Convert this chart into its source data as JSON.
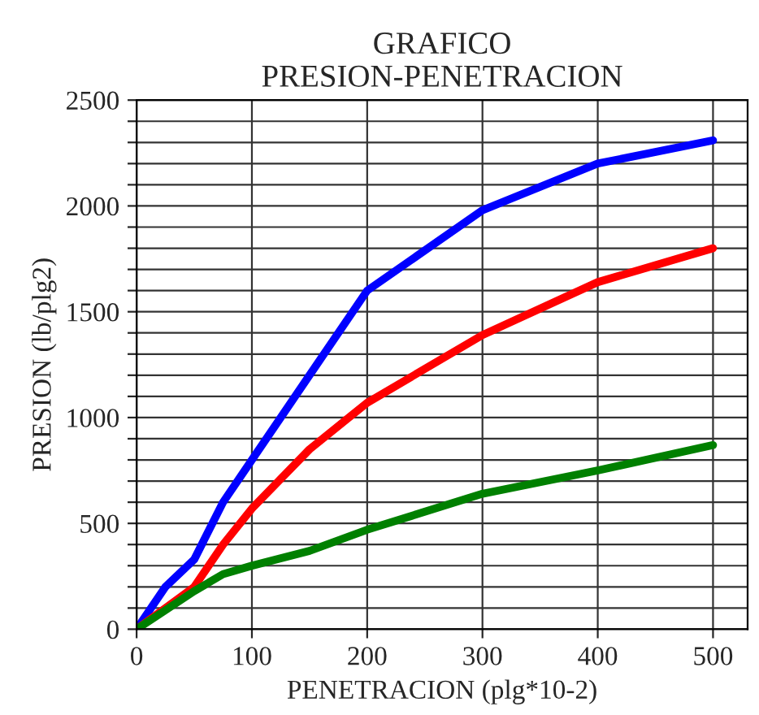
{
  "chart_data": {
    "type": "line",
    "title": "GRAFICO\nPRESION-PENETRACION",
    "xlabel": "PENETRACION (plg*10-2)",
    "ylabel": "PRESION (lb/plg2)",
    "x": [
      0,
      25,
      50,
      75,
      100,
      150,
      200,
      300,
      400,
      500
    ],
    "series": [
      {
        "color": "#0000ff",
        "values": [
          0,
          200,
          330,
          600,
          800,
          1200,
          1600,
          1980,
          2200,
          2310
        ]
      },
      {
        "color": "#ff0000",
        "values": [
          0,
          100,
          200,
          400,
          570,
          850,
          1070,
          1390,
          1640,
          1800
        ]
      },
      {
        "color": "#008000",
        "values": [
          0,
          90,
          180,
          260,
          300,
          370,
          470,
          640,
          750,
          870
        ]
      }
    ],
    "xlim": [
      0,
      530
    ],
    "xticks": [
      0,
      100,
      200,
      300,
      400,
      500
    ],
    "ylim": [
      0,
      2500
    ],
    "yticks": [
      0,
      {
        "value": 100,
        "label": null
      },
      {
        "value": 200,
        "label": null
      },
      {
        "value": 300,
        "label": null
      },
      {
        "value": 400,
        "label": null
      },
      500,
      {
        "value": 600,
        "label": null
      },
      {
        "value": 700,
        "label": null
      },
      {
        "value": 800,
        "label": null
      },
      {
        "value": 900,
        "label": null
      },
      1000,
      {
        "value": 1100,
        "label": null
      },
      {
        "value": 1200,
        "label": null
      },
      {
        "value": 1300,
        "label": null
      },
      {
        "value": 1400,
        "label": null
      },
      1500,
      {
        "value": 1600,
        "label": null
      },
      {
        "value": 1700,
        "label": null
      },
      {
        "value": 1800,
        "label": null
      },
      {
        "value": 1900,
        "label": null
      },
      2000,
      {
        "value": 2100,
        "label": null
      },
      {
        "value": 2200,
        "label": null
      },
      {
        "value": 2300,
        "label": null
      },
      {
        "value": 2400,
        "label": null
      },
      2500
    ],
    "grid": true,
    "marker": "none",
    "line_style": "solid",
    "legend": false
  }
}
